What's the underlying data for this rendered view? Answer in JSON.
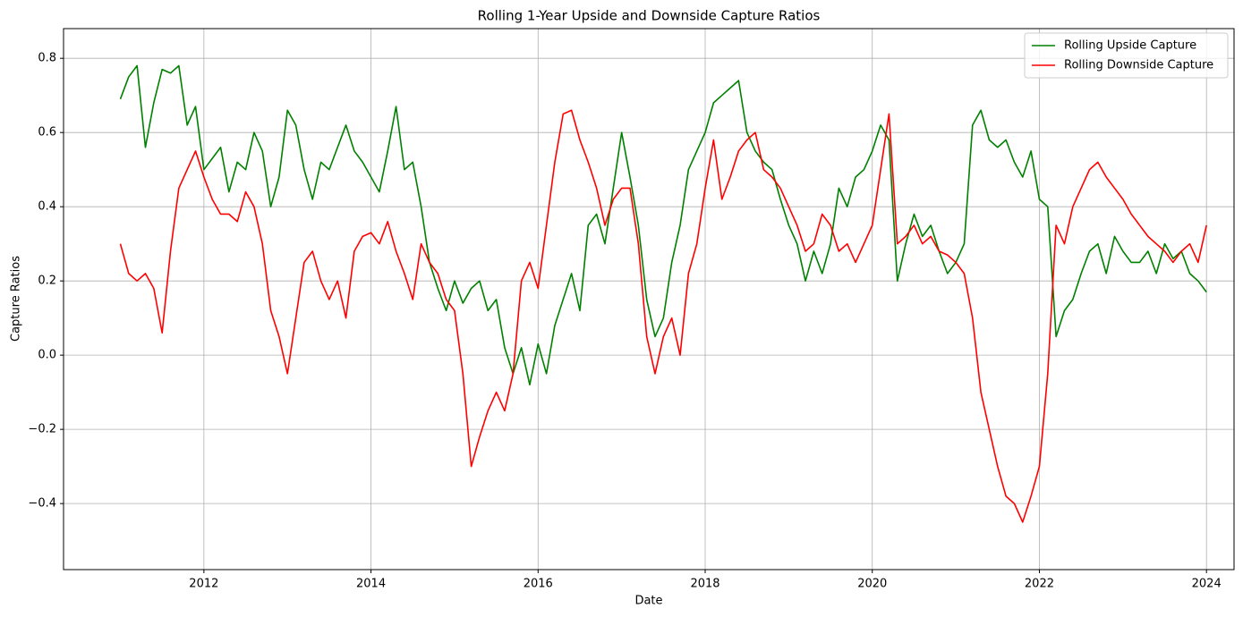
{
  "chart_data": {
    "type": "line",
    "title": "Rolling 1-Year Upside and Downside Capture Ratios",
    "xlabel": "Date",
    "ylabel": "Capture Ratios",
    "x": [
      2011.0,
      2011.1,
      2011.2,
      2011.3,
      2011.4,
      2011.5,
      2011.6,
      2011.7,
      2011.8,
      2011.9,
      2012.0,
      2012.1,
      2012.2,
      2012.3,
      2012.4,
      2012.5,
      2012.6,
      2012.7,
      2012.8,
      2012.9,
      2013.0,
      2013.1,
      2013.2,
      2013.3,
      2013.4,
      2013.5,
      2013.6,
      2013.7,
      2013.8,
      2013.9,
      2014.0,
      2014.1,
      2014.2,
      2014.3,
      2014.4,
      2014.5,
      2014.6,
      2014.7,
      2014.8,
      2014.9,
      2015.0,
      2015.1,
      2015.2,
      2015.3,
      2015.4,
      2015.5,
      2015.6,
      2015.7,
      2015.8,
      2015.9,
      2016.0,
      2016.1,
      2016.2,
      2016.3,
      2016.4,
      2016.5,
      2016.6,
      2016.7,
      2016.8,
      2016.9,
      2017.0,
      2017.1,
      2017.2,
      2017.3,
      2017.4,
      2017.5,
      2017.6,
      2017.7,
      2017.8,
      2017.9,
      2018.0,
      2018.1,
      2018.2,
      2018.3,
      2018.4,
      2018.5,
      2018.6,
      2018.7,
      2018.8,
      2018.9,
      2019.0,
      2019.1,
      2019.2,
      2019.3,
      2019.4,
      2019.5,
      2019.6,
      2019.7,
      2019.8,
      2019.9,
      2020.0,
      2020.1,
      2020.2,
      2020.3,
      2020.4,
      2020.5,
      2020.6,
      2020.7,
      2020.8,
      2020.9,
      2021.0,
      2021.1,
      2021.2,
      2021.3,
      2021.4,
      2021.5,
      2021.6,
      2021.7,
      2021.8,
      2021.9,
      2022.0,
      2022.1,
      2022.2,
      2022.3,
      2022.4,
      2022.5,
      2022.6,
      2022.7,
      2022.8,
      2022.9,
      2023.0,
      2023.1,
      2023.2,
      2023.3,
      2023.4,
      2023.5,
      2023.6,
      2023.7,
      2023.8,
      2023.9,
      2024.0
    ],
    "series": [
      {
        "name": "Rolling Upside Capture",
        "color": "#008000",
        "values": [
          0.69,
          0.75,
          0.78,
          0.56,
          0.68,
          0.77,
          0.76,
          0.78,
          0.62,
          0.67,
          0.5,
          0.53,
          0.56,
          0.44,
          0.52,
          0.5,
          0.6,
          0.55,
          0.4,
          0.48,
          0.66,
          0.62,
          0.5,
          0.42,
          0.52,
          0.5,
          0.56,
          0.62,
          0.55,
          0.52,
          0.48,
          0.44,
          0.55,
          0.67,
          0.5,
          0.52,
          0.4,
          0.25,
          0.18,
          0.12,
          0.2,
          0.14,
          0.18,
          0.2,
          0.12,
          0.15,
          0.02,
          -0.05,
          0.02,
          -0.08,
          0.03,
          -0.05,
          0.08,
          0.15,
          0.22,
          0.12,
          0.35,
          0.38,
          0.3,
          0.45,
          0.6,
          0.48,
          0.35,
          0.15,
          0.05,
          0.1,
          0.25,
          0.35,
          0.5,
          0.55,
          0.6,
          0.68,
          0.7,
          0.72,
          0.74,
          0.6,
          0.55,
          0.52,
          0.5,
          0.42,
          0.35,
          0.3,
          0.2,
          0.28,
          0.22,
          0.3,
          0.45,
          0.4,
          0.48,
          0.5,
          0.55,
          0.62,
          0.58,
          0.2,
          0.3,
          0.38,
          0.32,
          0.35,
          0.28,
          0.22,
          0.25,
          0.3,
          0.62,
          0.66,
          0.58,
          0.56,
          0.58,
          0.52,
          0.48,
          0.55,
          0.42,
          0.4,
          0.05,
          0.12,
          0.15,
          0.22,
          0.28,
          0.3,
          0.22,
          0.32,
          0.28,
          0.25,
          0.25,
          0.28,
          0.22,
          0.3,
          0.26,
          0.28,
          0.22,
          0.2,
          0.17
        ]
      },
      {
        "name": "Rolling Downside Capture",
        "color": "#ff0000",
        "values": [
          0.3,
          0.22,
          0.2,
          0.22,
          0.18,
          0.06,
          0.28,
          0.45,
          0.5,
          0.55,
          0.48,
          0.42,
          0.38,
          0.38,
          0.36,
          0.44,
          0.4,
          0.3,
          0.12,
          0.05,
          -0.05,
          0.1,
          0.25,
          0.28,
          0.2,
          0.15,
          0.2,
          0.1,
          0.28,
          0.32,
          0.33,
          0.3,
          0.36,
          0.28,
          0.22,
          0.15,
          0.3,
          0.25,
          0.22,
          0.15,
          0.12,
          -0.05,
          -0.3,
          -0.22,
          -0.15,
          -0.1,
          -0.15,
          -0.05,
          0.2,
          0.25,
          0.18,
          0.35,
          0.52,
          0.65,
          0.66,
          0.58,
          0.52,
          0.45,
          0.35,
          0.42,
          0.45,
          0.45,
          0.3,
          0.05,
          -0.05,
          0.05,
          0.1,
          0.0,
          0.22,
          0.3,
          0.45,
          0.58,
          0.42,
          0.48,
          0.55,
          0.58,
          0.6,
          0.5,
          0.48,
          0.45,
          0.4,
          0.35,
          0.28,
          0.3,
          0.38,
          0.35,
          0.28,
          0.3,
          0.25,
          0.3,
          0.35,
          0.5,
          0.65,
          0.3,
          0.32,
          0.35,
          0.3,
          0.32,
          0.28,
          0.27,
          0.25,
          0.22,
          0.1,
          -0.1,
          -0.2,
          -0.3,
          -0.38,
          -0.4,
          -0.45,
          -0.38,
          -0.3,
          -0.05,
          0.35,
          0.3,
          0.4,
          0.45,
          0.5,
          0.52,
          0.48,
          0.45,
          0.42,
          0.38,
          0.35,
          0.32,
          0.3,
          0.28,
          0.25,
          0.28,
          0.3,
          0.25,
          0.35
        ]
      }
    ],
    "xlim": [
      2010.32,
      2024.33
    ],
    "xticks": [
      2012,
      2014,
      2016,
      2018,
      2020,
      2022,
      2024
    ],
    "ylim": [
      -0.578,
      0.88
    ],
    "yticks": [
      {
        "value": -0.4,
        "label": "−0.4"
      },
      {
        "value": -0.2,
        "label": "−0.2"
      },
      {
        "value": 0,
        "label": "0.0"
      },
      0.2,
      0.4,
      0.6,
      0.8
    ],
    "grid": true,
    "legend": "upper right"
  }
}
